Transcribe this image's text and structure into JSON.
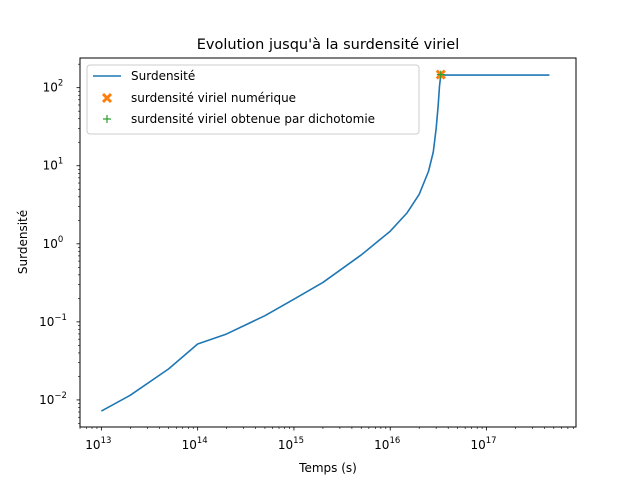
{
  "chart_data": {
    "type": "line",
    "title": "Evolution jusqu'à la surdensité viriel",
    "xlabel": "Temps (s)",
    "ylabel": "Surdensité",
    "xscale": "log",
    "yscale": "log",
    "xlim": [
      6000000000000.0,
      8.5e+17
    ],
    "ylim": [
      0.0045,
      240
    ],
    "grid": false,
    "legend_position": "upper left",
    "x_ticks": [
      {
        "value": 10000000000000.0,
        "base": "10",
        "exp": "13"
      },
      {
        "value": 100000000000000.0,
        "base": "10",
        "exp": "14"
      },
      {
        "value": 1000000000000000.0,
        "base": "10",
        "exp": "15"
      },
      {
        "value": 1e+16,
        "base": "10",
        "exp": "16"
      },
      {
        "value": 1e+17,
        "base": "10",
        "exp": "17"
      }
    ],
    "y_ticks": [
      {
        "value": 0.01,
        "base": "10",
        "exp": "−2"
      },
      {
        "value": 0.1,
        "base": "10",
        "exp": "−1"
      },
      {
        "value": 1,
        "base": "10",
        "exp": "0"
      },
      {
        "value": 10,
        "base": "10",
        "exp": "1"
      },
      {
        "value": 100,
        "base": "10",
        "exp": "2"
      }
    ],
    "series": [
      {
        "name": "Surdensité",
        "kind": "line",
        "color": "#1f77b4",
        "points": [
          [
            10000000000000.0,
            0.0072
          ],
          [
            20000000000000.0,
            0.0115
          ],
          [
            50000000000000.0,
            0.025
          ],
          [
            100000000000000.0,
            0.052
          ],
          [
            200000000000000.0,
            0.07
          ],
          [
            500000000000000.0,
            0.12
          ],
          [
            1000000000000000.0,
            0.195
          ],
          [
            2000000000000000.0,
            0.32
          ],
          [
            5000000000000000.0,
            0.72
          ],
          [
            1e+16,
            1.45
          ],
          [
            1.5e+16,
            2.5
          ],
          [
            2e+16,
            4.3
          ],
          [
            2.5e+16,
            8.5
          ],
          [
            2.8e+16,
            15
          ],
          [
            3e+16,
            30
          ],
          [
            3.15e+16,
            60
          ],
          [
            3.25e+16,
            105
          ],
          [
            3.35e+16,
            145
          ],
          [
            3.5e+16,
            145
          ],
          [
            4.5e+17,
            145
          ]
        ]
      },
      {
        "name": "surdensité viriel numérique",
        "kind": "marker",
        "marker": "X",
        "color": "#ff7f0e",
        "points": [
          [
            3.35e+16,
            147
          ]
        ]
      },
      {
        "name": "surdensité viriel obtenue par dichotomie",
        "kind": "marker",
        "marker": "+",
        "color": "#2ca02c",
        "points": [
          [
            3.35e+16,
            147
          ]
        ]
      }
    ]
  }
}
